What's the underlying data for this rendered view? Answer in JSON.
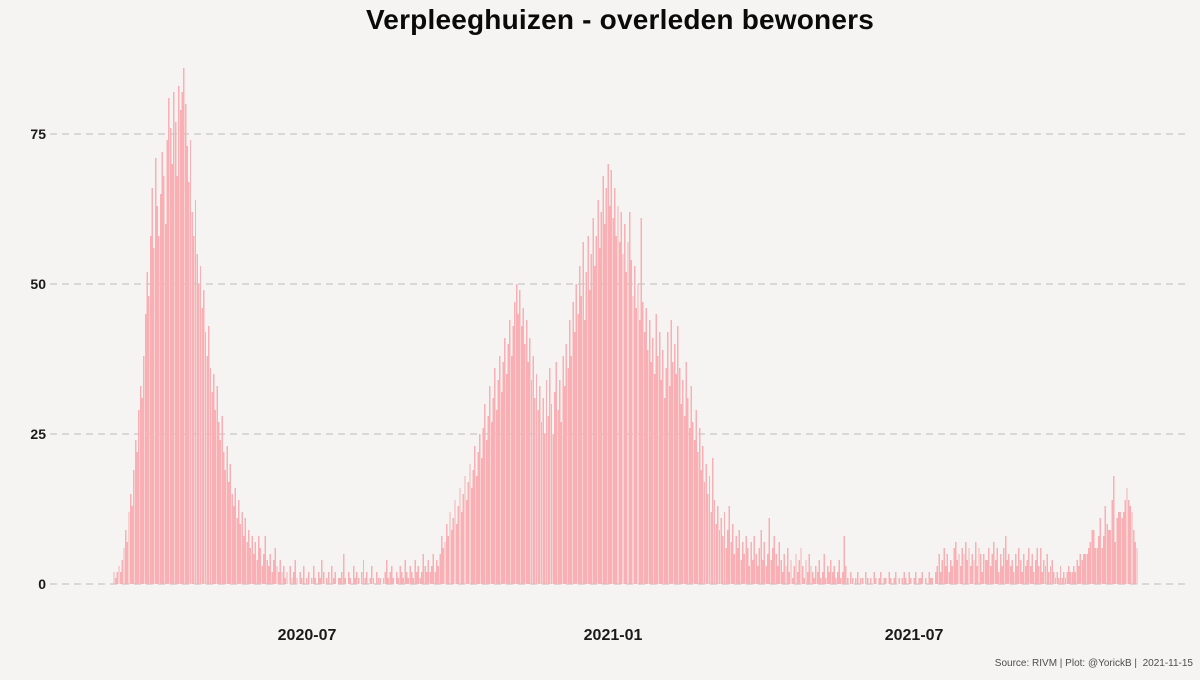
{
  "chart": {
    "title": "Verpleeghuizen - overleden bewoners",
    "source_note": "Source: RIVM | Plot: @YorickB |  2021-11-15"
  },
  "colors": {
    "background": "#f5f4f2",
    "bar": "#f9afb4",
    "gridline": "#cfcfcf",
    "title_text": "#0a0a0a",
    "tick_text": "#1a1a1a",
    "source_text": "#4d4d4d"
  },
  "chart_data": {
    "type": "bar",
    "title": "Verpleeghuizen - overleden bewoners",
    "xlabel": "",
    "ylabel": "",
    "frequency": "daily",
    "x_start_date": "2020-03-07",
    "x_end_date": "2021-11-12",
    "ylim": [
      0,
      90
    ],
    "grid": "horizontal-dashed",
    "legend": "none",
    "y_ticks": [
      0,
      25,
      50,
      75
    ],
    "x_ticks": [
      {
        "label": "2020-07",
        "day_offset": 116
      },
      {
        "label": "2021-01",
        "day_offset": 300
      },
      {
        "label": "2021-07",
        "day_offset": 481
      }
    ],
    "values": [
      2,
      1,
      2,
      3,
      2,
      4,
      6,
      9,
      7,
      12,
      15,
      13,
      19,
      24,
      22,
      29,
      33,
      31,
      38,
      45,
      52,
      48,
      58,
      66,
      56,
      71,
      63,
      58,
      65,
      72,
      68,
      60,
      74,
      81,
      76,
      70,
      82,
      77,
      68,
      83,
      79,
      82,
      86,
      80,
      73,
      67,
      74,
      62,
      58,
      64,
      55,
      50,
      53,
      46,
      49,
      42,
      38,
      43,
      36,
      32,
      35,
      29,
      33,
      27,
      24,
      28,
      22,
      19,
      23,
      17,
      20,
      15,
      13,
      16,
      11,
      14,
      10,
      12,
      8,
      11,
      7,
      9,
      6,
      8,
      5,
      7,
      4,
      8,
      6,
      3,
      5,
      8,
      4,
      3,
      5,
      2,
      4,
      6,
      3,
      2,
      4,
      2,
      3,
      1,
      2,
      0,
      3,
      1,
      2,
      4,
      1,
      0,
      2,
      1,
      3,
      0,
      1,
      2,
      0,
      1,
      3,
      1,
      0,
      2,
      1,
      4,
      2,
      0,
      1,
      2,
      0,
      3,
      1,
      2,
      0,
      1,
      1,
      2,
      5,
      1,
      0,
      2,
      1,
      0,
      3,
      1,
      2,
      1,
      0,
      2,
      4,
      1,
      2,
      0,
      1,
      3,
      1,
      0,
      2,
      1,
      1,
      0,
      1,
      2,
      4,
      1,
      2,
      3,
      1,
      0,
      2,
      1,
      3,
      2,
      1,
      4,
      2,
      1,
      3,
      2,
      1,
      4,
      2,
      3,
      1,
      2,
      5,
      3,
      2,
      4,
      2,
      3,
      5,
      2,
      4,
      3,
      5,
      8,
      6,
      7,
      10,
      8,
      12,
      9,
      11,
      14,
      10,
      13,
      16,
      12,
      15,
      18,
      14,
      17,
      20,
      16,
      19,
      23,
      18,
      22,
      25,
      21,
      26,
      30,
      24,
      28,
      33,
      27,
      31,
      36,
      29,
      34,
      38,
      32,
      37,
      41,
      35,
      40,
      44,
      38,
      43,
      47,
      50,
      45,
      49,
      43,
      46,
      40,
      44,
      37,
      41,
      34,
      38,
      31,
      35,
      29,
      33,
      27,
      31,
      25,
      34,
      28,
      36,
      30,
      25,
      32,
      37,
      29,
      34,
      27,
      38,
      33,
      40,
      36,
      44,
      38,
      47,
      42,
      50,
      45,
      53,
      48,
      57,
      44,
      52,
      58,
      49,
      55,
      61,
      53,
      58,
      64,
      56,
      62,
      68,
      60,
      66,
      70,
      63,
      69,
      61,
      66,
      58,
      63,
      57,
      62,
      55,
      60,
      52,
      57,
      62,
      54,
      48,
      53,
      46,
      50,
      44,
      61,
      47,
      42,
      46,
      39,
      44,
      37,
      41,
      35,
      45,
      38,
      42,
      34,
      39,
      31,
      36,
      42,
      33,
      44,
      37,
      40,
      35,
      43,
      36,
      30,
      34,
      28,
      37,
      31,
      26,
      33,
      27,
      24,
      29,
      22,
      26,
      19,
      23,
      17,
      20,
      15,
      18,
      12,
      21,
      14,
      10,
      13,
      9,
      11,
      8,
      12,
      6,
      9,
      13,
      7,
      10,
      5,
      8,
      6,
      9,
      4,
      7,
      5,
      8,
      6,
      3,
      7,
      4,
      8,
      5,
      3,
      6,
      9,
      4,
      7,
      3,
      5,
      11,
      4,
      6,
      8,
      5,
      3,
      7,
      4,
      2,
      5,
      3,
      6,
      2,
      4,
      1,
      3,
      5,
      2,
      4,
      6,
      3,
      1,
      4,
      2,
      5,
      3,
      2,
      1,
      3,
      2,
      4,
      1,
      2,
      5,
      1,
      3,
      2,
      4,
      2,
      3,
      1,
      2,
      4,
      1,
      2,
      8,
      3,
      1,
      0,
      2,
      1,
      0,
      1,
      2,
      0,
      1,
      1,
      0,
      2,
      1,
      0,
      1,
      0,
      2,
      1,
      0,
      1,
      2,
      0,
      1,
      1,
      0,
      2,
      1,
      0,
      1,
      2,
      0,
      1,
      0,
      1,
      2,
      1,
      0,
      2,
      1,
      0,
      1,
      2,
      0,
      1,
      1,
      2,
      0,
      1,
      0,
      2,
      1,
      1,
      0,
      2,
      3,
      5,
      2,
      4,
      6,
      3,
      5,
      2,
      4,
      3,
      6,
      7,
      4,
      5,
      3,
      6,
      5,
      7,
      4,
      6,
      3,
      5,
      4,
      7,
      3,
      6,
      5,
      2,
      5,
      4,
      4,
      6,
      3,
      5,
      7,
      4,
      6,
      2,
      5,
      3,
      6,
      8,
      4,
      5,
      3,
      4,
      2,
      5,
      3,
      6,
      4,
      2,
      5,
      3,
      4,
      6,
      3,
      5,
      2,
      4,
      6,
      3,
      6,
      2,
      4,
      3,
      5,
      2,
      3,
      4,
      2,
      1,
      2,
      1,
      3,
      1,
      2,
      1,
      2,
      3,
      2,
      2,
      3,
      2,
      4,
      3,
      5,
      4,
      5,
      5,
      5,
      6,
      7,
      9,
      9,
      6,
      6,
      8,
      11,
      6,
      8,
      13,
      10,
      9,
      9,
      14,
      18,
      7,
      11,
      12,
      12,
      11,
      12,
      14,
      16,
      14,
      13,
      12,
      9,
      7,
      6
    ]
  }
}
